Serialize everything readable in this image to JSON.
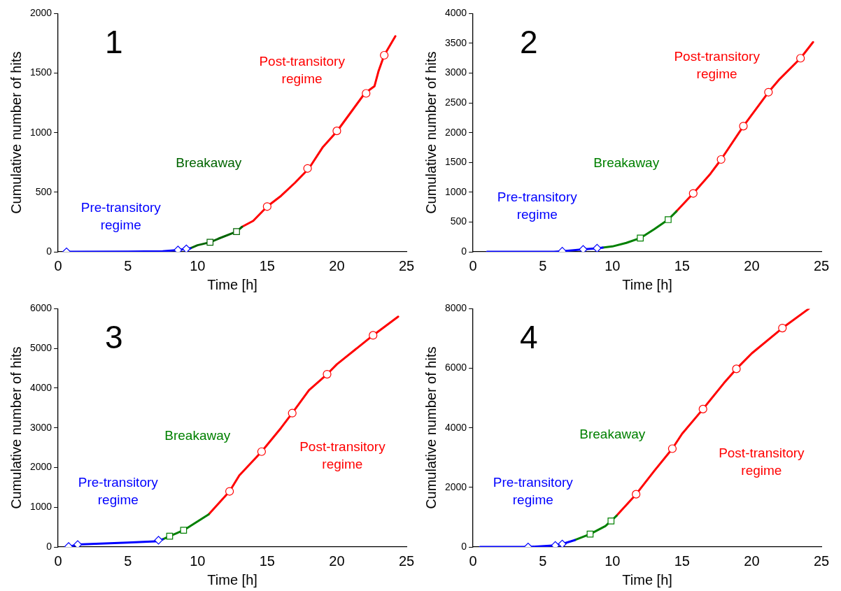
{
  "chart_data": [
    {
      "type": "line",
      "title": "1",
      "xlabel": "Time [h]",
      "ylabel": "Cumulative number of hits",
      "xlim": [
        0,
        25
      ],
      "xticks": [
        0,
        5,
        10,
        15,
        20,
        25
      ],
      "ylim": [
        0,
        2000
      ],
      "yticks": [
        0,
        500,
        1000,
        1500,
        2000
      ],
      "grid": false,
      "legend": false,
      "marker": "none",
      "line_style": "solid",
      "series": [
        {
          "type": "line",
          "color": "#0000ff",
          "x": [
            0.5,
            5,
            7.5,
            8.6,
            9.2,
            9.5
          ],
          "values": [
            0,
            2,
            5,
            15,
            25,
            30
          ]
        },
        {
          "type": "line",
          "color": "#006400",
          "x": [
            9.5,
            10,
            10.9,
            11.5,
            12.8,
            13.2
          ],
          "values": [
            30,
            55,
            80,
            110,
            170,
            210
          ]
        },
        {
          "type": "line",
          "color": "#ff0000",
          "x": [
            13.2,
            14,
            15,
            16,
            17,
            18,
            19,
            20,
            21,
            22,
            22.7,
            23,
            23.4,
            24.2
          ],
          "values": [
            210,
            260,
            380,
            470,
            580,
            700,
            880,
            1010,
            1170,
            1330,
            1390,
            1520,
            1650,
            1810
          ]
        },
        {
          "type": "scatter",
          "marker": "diamond",
          "color": "#0000ff",
          "x": [
            0.6,
            8.6,
            9.2
          ],
          "values": [
            0,
            15,
            25
          ]
        },
        {
          "type": "scatter",
          "marker": "square",
          "color": "#006400",
          "x": [
            10.9,
            12.8
          ],
          "values": [
            80,
            170
          ]
        },
        {
          "type": "scatter",
          "marker": "circle",
          "color": "#ff0000",
          "x": [
            15,
            17.9,
            20,
            22.1,
            23.4
          ],
          "values": [
            380,
            700,
            1015,
            1330,
            1650
          ]
        }
      ],
      "annotations": [
        "Pre-transitory regime",
        "Breakaway",
        "Post-transitory regime"
      ]
    },
    {
      "type": "line",
      "title": "2",
      "xlabel": "Time [h]",
      "ylabel": "Cumulative number of hits",
      "xlim": [
        0,
        25
      ],
      "xticks": [
        0,
        5,
        10,
        15,
        20,
        25
      ],
      "ylim": [
        0,
        4000
      ],
      "yticks": [
        0,
        500,
        1000,
        1500,
        2000,
        2500,
        3000,
        3500,
        4000
      ],
      "grid": false,
      "legend": false,
      "marker": "none",
      "line_style": "solid",
      "series": [
        {
          "type": "line",
          "color": "#0000ff",
          "x": [
            1,
            5.8,
            6.4,
            7.9,
            8.9,
            9.3
          ],
          "values": [
            0,
            0,
            10,
            40,
            60,
            70
          ]
        },
        {
          "type": "line",
          "color": "#008000",
          "x": [
            9.3,
            10,
            11,
            12,
            13,
            14,
            14.6
          ],
          "values": [
            70,
            90,
            150,
            230,
            380,
            540,
            680
          ]
        },
        {
          "type": "line",
          "color": "#ff0000",
          "x": [
            14.6,
            15.8,
            17,
            17.8,
            19.4,
            21.2,
            22,
            23.5,
            24.4
          ],
          "values": [
            680,
            980,
            1300,
            1550,
            2110,
            2680,
            2900,
            3250,
            3520
          ]
        },
        {
          "type": "scatter",
          "marker": "diamond",
          "color": "#0000ff",
          "x": [
            6.4,
            7.9,
            8.9
          ],
          "values": [
            10,
            40,
            60
          ]
        },
        {
          "type": "scatter",
          "marker": "square",
          "color": "#008000",
          "x": [
            12,
            14
          ],
          "values": [
            230,
            540
          ]
        },
        {
          "type": "scatter",
          "marker": "circle",
          "color": "#ff0000",
          "x": [
            15.8,
            17.8,
            19.4,
            21.2,
            23.5
          ],
          "values": [
            980,
            1550,
            2110,
            2680,
            3250
          ]
        }
      ],
      "annotations": [
        "Pre-transitory regime",
        "Breakaway",
        "Post-transitory regime"
      ]
    },
    {
      "type": "line",
      "title": "3",
      "xlabel": "Time [h]",
      "ylabel": "Cumulative number of hits",
      "xlim": [
        0,
        25
      ],
      "xticks": [
        0,
        5,
        10,
        15,
        20,
        25
      ],
      "ylim": [
        0,
        6000
      ],
      "yticks": [
        0,
        1000,
        2000,
        3000,
        4000,
        5000,
        6000
      ],
      "grid": false,
      "legend": false,
      "marker": "none",
      "line_style": "solid",
      "series": [
        {
          "type": "line",
          "color": "#0000ff",
          "x": [
            0.7,
            1.4,
            5,
            7,
            7.2,
            7.5
          ],
          "values": [
            0,
            60,
            110,
            140,
            170,
            190
          ]
        },
        {
          "type": "line",
          "color": "#008000",
          "x": [
            7.5,
            8,
            9,
            10.8
          ],
          "values": [
            190,
            270,
            420,
            820
          ]
        },
        {
          "type": "line",
          "color": "#ff0000",
          "x": [
            10.8,
            12.3,
            13,
            14.6,
            16,
            16.8,
            18,
            19.3,
            20,
            22.6,
            24.4
          ],
          "values": [
            820,
            1400,
            1800,
            2400,
            3000,
            3370,
            3950,
            4350,
            4600,
            5330,
            5800
          ]
        },
        {
          "type": "scatter",
          "marker": "diamond",
          "color": "#0000ff",
          "x": [
            0.75,
            1.4,
            7.2
          ],
          "values": [
            10,
            60,
            170
          ]
        },
        {
          "type": "scatter",
          "marker": "square",
          "color": "#008000",
          "x": [
            8,
            9
          ],
          "values": [
            270,
            420
          ]
        },
        {
          "type": "scatter",
          "marker": "circle",
          "color": "#ff0000",
          "x": [
            12.3,
            14.6,
            16.8,
            19.3,
            22.6
          ],
          "values": [
            1400,
            2400,
            3370,
            4350,
            5330
          ]
        }
      ],
      "annotations": [
        "Pre-transitory regime",
        "Breakaway",
        "Post-transitory regime"
      ]
    },
    {
      "type": "line",
      "title": "4",
      "xlabel": "Time [h]",
      "ylabel": "Cumulative number of hits",
      "xlim": [
        0,
        25
      ],
      "xticks": [
        0,
        5,
        10,
        15,
        20,
        25
      ],
      "ylim": [
        0,
        8000
      ],
      "yticks": [
        0,
        2000,
        4000,
        6000,
        8000
      ],
      "grid": false,
      "legend": false,
      "marker": "none",
      "line_style": "solid",
      "series": [
        {
          "type": "line",
          "color": "#0000ff",
          "x": [
            0.5,
            4,
            5.9,
            6.4,
            7.3
          ],
          "values": [
            0,
            0,
            50,
            100,
            230
          ]
        },
        {
          "type": "line",
          "color": "#008000",
          "x": [
            7.3,
            8.4,
            9.5,
            9.9,
            10.3
          ],
          "values": [
            230,
            430,
            700,
            870,
            1050
          ]
        },
        {
          "type": "line",
          "color": "#ff0000",
          "x": [
            10.3,
            11.7,
            13,
            14.3,
            15,
            16.5,
            18,
            18.9,
            20,
            22.2,
            24.1
          ],
          "values": [
            1050,
            1770,
            2550,
            3300,
            3800,
            4630,
            5500,
            5980,
            6500,
            7350,
            8000
          ]
        },
        {
          "type": "scatter",
          "marker": "diamond",
          "color": "#0000ff",
          "x": [
            3.95,
            5.9,
            6.4
          ],
          "values": [
            0,
            50,
            100
          ]
        },
        {
          "type": "scatter",
          "marker": "square",
          "color": "#008000",
          "x": [
            8.4,
            9.9
          ],
          "values": [
            430,
            870
          ]
        },
        {
          "type": "scatter",
          "marker": "circle",
          "color": "#ff0000",
          "x": [
            11.7,
            14.3,
            16.5,
            18.9,
            22.2
          ],
          "values": [
            1770,
            3300,
            4630,
            5980,
            7350
          ]
        }
      ],
      "annotations": [
        "Pre-transitory regime",
        "Breakaway",
        "Post-transitory regime"
      ]
    }
  ]
}
